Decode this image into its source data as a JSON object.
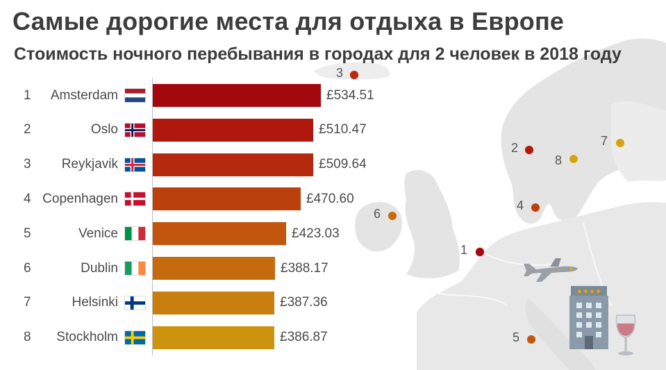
{
  "title": "Самые дорогие места для отдыха в Европе",
  "subtitle": "Стоимость ночного перебывания в городах для 2 человек в 2018 году",
  "chart_data": {
    "type": "bar",
    "orientation": "horizontal",
    "currency": "£",
    "categories": [
      "Amsterdam",
      "Oslo",
      "Reykjavik",
      "Copenhagen",
      "Venice",
      "Dublin",
      "Helsinki",
      "Stockholm"
    ],
    "ranks": [
      "1",
      "2",
      "3",
      "4",
      "5",
      "6",
      "7",
      "8"
    ],
    "values": [
      534.51,
      510.47,
      509.64,
      470.6,
      423.03,
      388.17,
      387.36,
      386.87
    ],
    "value_labels": [
      "£534.51",
      "£510.47",
      "£509.64",
      "£470.60",
      "£423.03",
      "£388.17",
      "£387.36",
      "£386.87"
    ],
    "bar_colors": [
      "#a3080e",
      "#b0180e",
      "#b52a0e",
      "#bb410c",
      "#c2560e",
      "#c56b0e",
      "#c87f0e",
      "#cd930e"
    ],
    "flags": [
      "Netherlands",
      "Norway",
      "Iceland",
      "Denmark",
      "Italy",
      "Ireland",
      "Finland",
      "Sweden"
    ]
  },
  "map_pins": [
    {
      "label": "3",
      "color": "#b52a0e"
    },
    {
      "label": "2",
      "color": "#b0180e"
    },
    {
      "label": "8",
      "color": "#d7a116"
    },
    {
      "label": "7",
      "color": "#d7a116"
    },
    {
      "label": "4",
      "color": "#bb410c"
    },
    {
      "label": "6",
      "color": "#c56b0e"
    },
    {
      "label": "1",
      "color": "#a3080e"
    },
    {
      "label": "5",
      "color": "#c2560e"
    }
  ],
  "hotel_stars": "★★★★",
  "illustrations": [
    "airplane-icon",
    "hotel-icon",
    "wine-glass-icon"
  ]
}
